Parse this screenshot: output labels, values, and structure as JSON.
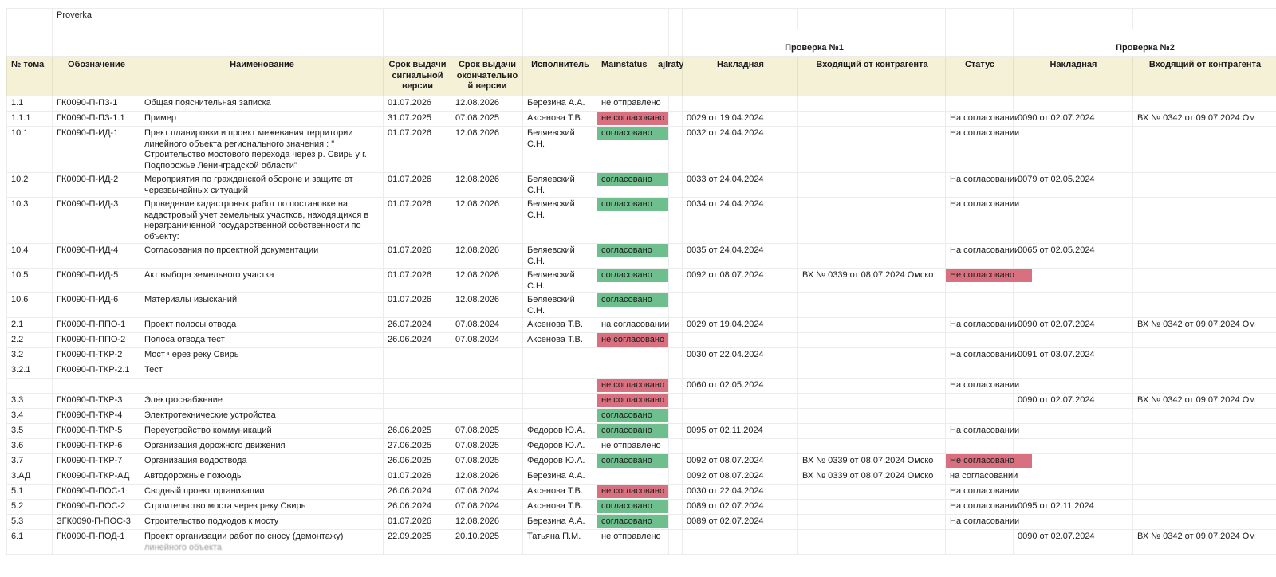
{
  "corner_note": "Proverka",
  "colors": {
    "header_bg": "#f4f1d7",
    "approved_chip": "#6fbe8d",
    "rejected_chip": "#d9707f",
    "grid_line": "#ececec"
  },
  "groups": {
    "check1": "Проверка №1",
    "check2": "Проверка №2"
  },
  "columns": {
    "vol": "№ тома",
    "code": "Обозначение",
    "name": "Наименование",
    "signal": "Срок выдачи сигнальной версии",
    "final": "Срок выдачи окончательной версии",
    "executor": "Исполнитель",
    "main": "Mainstatus",
    "narrow": "ajlraty",
    "inv1": "Накладная",
    "inc1": "Входящий от контрагента",
    "status": "Статус",
    "inv2": "Накладная",
    "inc2": "Входящий от контрагента"
  },
  "rows": [
    {
      "vol": "1.1",
      "code": "ГК0090-П-ПЗ-1",
      "name": "Общая пояснительная записка",
      "signal": "01.07.2026",
      "final": "12.08.2026",
      "executor": "Березина А.А.",
      "main": "не отправлено",
      "main_style": "plain",
      "inv1": "",
      "inc1": "",
      "status": "",
      "status_style": "plain",
      "inv2": "",
      "inc2": ""
    },
    {
      "vol": "1.1.1",
      "code": "ГК0090-П-ПЗ-1.1",
      "name": "Пример",
      "signal": "31.07.2025",
      "final": "07.08.2025",
      "executor": "Аксенова Т.В.",
      "main": "не согласовано",
      "main_style": "red",
      "inv1": "0029 от 19.04.2024",
      "inc1": "",
      "status": "На согласовании",
      "status_style": "plain",
      "inv2": "0090 от 02.07.2024",
      "inc2": "ВХ № 0342 от 09.07.2024 Ом"
    },
    {
      "vol": "10.1",
      "code": "ГК0090-П-ИД-1",
      "name": "Прект планировки и проект межевания территории линейного объекта регионального значения : \" Строительство мостового перехода через р. Свирь у г. Подпорожье Ленинградской области\"",
      "signal": "01.07.2026",
      "final": "12.08.2026",
      "executor": "Беляевский С.Н.",
      "main": "согласовано",
      "main_style": "green",
      "inv1": "0032 от 24.04.2024",
      "inc1": "",
      "status": "На согласовании",
      "status_style": "plain",
      "inv2": "",
      "inc2": ""
    },
    {
      "vol": "10.2",
      "code": "ГК0090-П-ИД-2",
      "name": "Мероприятия по гражданской обороне и защите от черезвычайных ситуаций",
      "signal": "01.07.2026",
      "final": "12.08.2026",
      "executor": "Беляевский С.Н.",
      "main": "согласовано",
      "main_style": "green",
      "inv1": "0033 от 24.04.2024",
      "inc1": "",
      "status": "На согласовании",
      "status_style": "plain",
      "inv2": "0079 от 02.05.2024",
      "inc2": ""
    },
    {
      "vol": "10.3",
      "code": "ГК0090-П-ИД-3",
      "name": "Проведение кадастровых работ по постановке на кадастровый учет земельных участков, находящихся в нераграниченной государственной собственности по объекту:",
      "signal": "01.07.2026",
      "final": "12.08.2026",
      "executor": "Беляевский С.Н.",
      "main": "согласовано",
      "main_style": "green",
      "inv1": "0034 от 24.04.2024",
      "inc1": "",
      "status": "На согласовании",
      "status_style": "plain",
      "inv2": "",
      "inc2": ""
    },
    {
      "vol": "10.4",
      "code": "ГК0090-П-ИД-4",
      "name": "Согласования по проектной документации",
      "signal": "01.07.2026",
      "final": "12.08.2026",
      "executor": "Беляевский С.Н.",
      "main": "согласовано",
      "main_style": "green",
      "inv1": "0035 от 24.04.2024",
      "inc1": "",
      "status": "На согласовании",
      "status_style": "plain",
      "inv2": "0065 от 02.05.2024",
      "inc2": ""
    },
    {
      "vol": "10.5",
      "code": "ГК0090-П-ИД-5",
      "name": "Акт выбора земельного участка",
      "signal": "01.07.2026",
      "final": "12.08.2026",
      "executor": "Беляевский С.Н.",
      "main": "согласовано",
      "main_style": "green",
      "inv1": "0092 от 08.07.2024",
      "inc1": "ВХ № 0339 от 08.07.2024 Омско",
      "status": "Не согласовано",
      "status_style": "red",
      "inv2": "",
      "inc2": ""
    },
    {
      "vol": "10.6",
      "code": "ГК0090-П-ИД-6",
      "name": "Материалы изысканий",
      "signal": "01.07.2026",
      "final": "12.08.2026",
      "executor": "Беляевский С.Н.",
      "main": "согласовано",
      "main_style": "green",
      "inv1": "",
      "inc1": "",
      "status": "",
      "status_style": "plain",
      "inv2": "",
      "inc2": ""
    },
    {
      "vol": "2.1",
      "code": "ГК0090-П-ППО-1",
      "name": "Проект полосы отвода",
      "signal": "26.07.2024",
      "final": "07.08.2024",
      "executor": "Аксенова Т.В.",
      "main": "на согласовании",
      "main_style": "plain",
      "inv1": "0029 от 19.04.2024",
      "inc1": "",
      "status": "На согласовании",
      "status_style": "plain",
      "inv2": "0090 от 02.07.2024",
      "inc2": "ВХ № 0342 от 09.07.2024 Ом"
    },
    {
      "vol": "2.2",
      "code": "ГК0090-П-ППО-2",
      "name": "Полоса отвода тест",
      "signal": "26.06.2024",
      "final": "07.08.2024",
      "executor": "Аксенова Т.В.",
      "main": "не согласовано",
      "main_style": "red",
      "inv1": "",
      "inc1": "",
      "status": "",
      "status_style": "plain",
      "inv2": "",
      "inc2": ""
    },
    {
      "vol": "3.2",
      "code": "ГК0090-П-ТКР-2",
      "name": "Мост через реку Свирь",
      "signal": "",
      "final": "",
      "executor": "",
      "main": "",
      "main_style": "plain",
      "inv1": "0030 от 22.04.2024",
      "inc1": "",
      "status": "На согласовании",
      "status_style": "plain",
      "inv2": "0091 от 03.07.2024",
      "inc2": ""
    },
    {
      "vol": "3.2.1",
      "code": "ГК0090-П-ТКР-2.1",
      "name": "Тест",
      "signal": "",
      "final": "",
      "executor": "",
      "main": "",
      "main_style": "plain",
      "inv1": "",
      "inc1": "",
      "status": "",
      "status_style": "plain",
      "inv2": "",
      "inc2": ""
    },
    {
      "vol": "",
      "code": "",
      "name": "",
      "signal": "",
      "final": "",
      "executor": "",
      "main": "не согласовано",
      "main_style": "red",
      "inv1": "0060 от 02.05.2024",
      "inc1": "",
      "status": "На согласовании",
      "status_style": "plain",
      "inv2": "",
      "inc2": ""
    },
    {
      "vol": "3.3",
      "code": "ГК0090-П-ТКР-3",
      "name": "Электроснабжение",
      "signal": "",
      "final": "",
      "executor": "",
      "main": "не согласовано",
      "main_style": "red",
      "inv1": "",
      "inc1": "",
      "status": "",
      "status_style": "plain",
      "inv2": "0090 от 02.07.2024",
      "inc2": "ВХ № 0342 от 09.07.2024 Ом"
    },
    {
      "vol": "3.4",
      "code": "ГК0090-П-ТКР-4",
      "name": "Электротехнические устройства",
      "signal": "",
      "final": "",
      "executor": "",
      "main": "согласовано",
      "main_style": "green",
      "inv1": "",
      "inc1": "",
      "status": "",
      "status_style": "plain",
      "inv2": "",
      "inc2": ""
    },
    {
      "vol": "3.5",
      "code": "ГК0090-П-ТКР-5",
      "name": "Переустройство коммуникаций",
      "signal": "26.06.2025",
      "final": "07.08.2025",
      "executor": "Федоров Ю.А.",
      "main": "согласовано",
      "main_style": "green",
      "inv1": "0095 от 02.11.2024",
      "inc1": "",
      "status": "На согласовании",
      "status_style": "plain",
      "inv2": "",
      "inc2": ""
    },
    {
      "vol": "3.6",
      "code": "ГК0090-П-ТКР-6",
      "name": "Организация дорожного движения",
      "signal": "27.06.2025",
      "final": "07.08.2025",
      "executor": "Федоров Ю.А.",
      "main": "не отправлено",
      "main_style": "plain",
      "inv1": "",
      "inc1": "",
      "status": "",
      "status_style": "plain",
      "inv2": "",
      "inc2": ""
    },
    {
      "vol": "3.7",
      "code": "ГК0090-П-ТКР-7",
      "name": "Организация водоотвода",
      "signal": "26.06.2025",
      "final": "07.08.2025",
      "executor": "Федоров Ю.А.",
      "main": "согласовано",
      "main_style": "green",
      "inv1": "0092 от 08.07.2024",
      "inc1": "ВХ № 0339 от 08.07.2024 Омско",
      "status": "Не согласовано",
      "status_style": "red",
      "inv2": "",
      "inc2": ""
    },
    {
      "vol": "3.АД",
      "code": "ГК0090-П-ТКР-АД",
      "name": "Автодорожные пожходы",
      "signal": "01.07.2026",
      "final": "12.08.2026",
      "executor": "Березина А.А.",
      "main": "",
      "main_style": "plain",
      "inv1": "0092 от 08.07.2024",
      "inc1": "ВХ № 0339 от 08.07.2024 Омско",
      "status": "на согласовании",
      "status_style": "plain",
      "inv2": "",
      "inc2": ""
    },
    {
      "vol": "5.1",
      "code": "ГК0090-П-ПОС-1",
      "name": "Сводный проект организации",
      "signal": "26.06.2024",
      "final": "07.08.2024",
      "executor": "Аксенова Т.В.",
      "main": "не согласовано",
      "main_style": "red",
      "inv1": "0030 от 22.04.2024",
      "inc1": "",
      "status": "На согласовании",
      "status_style": "plain",
      "inv2": "",
      "inc2": ""
    },
    {
      "vol": "5.2",
      "code": "ГК0090-П-ПОС-2",
      "name": "Строительство моста через реку Свирь",
      "signal": "26.06.2024",
      "final": "07.08.2024",
      "executor": "Аксенова Т.В.",
      "main": "согласовано",
      "main_style": "green",
      "inv1": "0089 от 02.07.2024",
      "inc1": "",
      "status": "На согласовании",
      "status_style": "plain",
      "inv2": "0095 от 02.11.2024",
      "inc2": ""
    },
    {
      "vol": "5.3",
      "code": "ЗГК0090-П-ПОС-3",
      "name": "Строительство подходов к мосту",
      "signal": "01.07.2026",
      "final": "12.08.2026",
      "executor": "Березина А.А.",
      "main": "согласовано",
      "main_style": "green",
      "inv1": "0089 от 02.07.2024",
      "inc1": "",
      "status": "На согласовании",
      "status_style": "plain",
      "inv2": "",
      "inc2": ""
    },
    {
      "vol": "6.1",
      "code": "ГК0090-П-ПОД-1",
      "name": "Проект организации работ по сносу (демонтажу)",
      "name2": "линейного объекта",
      "clip": true,
      "signal": "22.09.2025",
      "final": "20.10.2025",
      "executor": "Татьяна П.М.",
      "main": "не отправлено",
      "main_style": "plain",
      "inv1": "",
      "inc1": "",
      "status": "",
      "status_style": "plain",
      "inv2": "0090 от 02.07.2024",
      "inc2": "ВХ № 0342 от 09.07.2024 Ом"
    }
  ]
}
